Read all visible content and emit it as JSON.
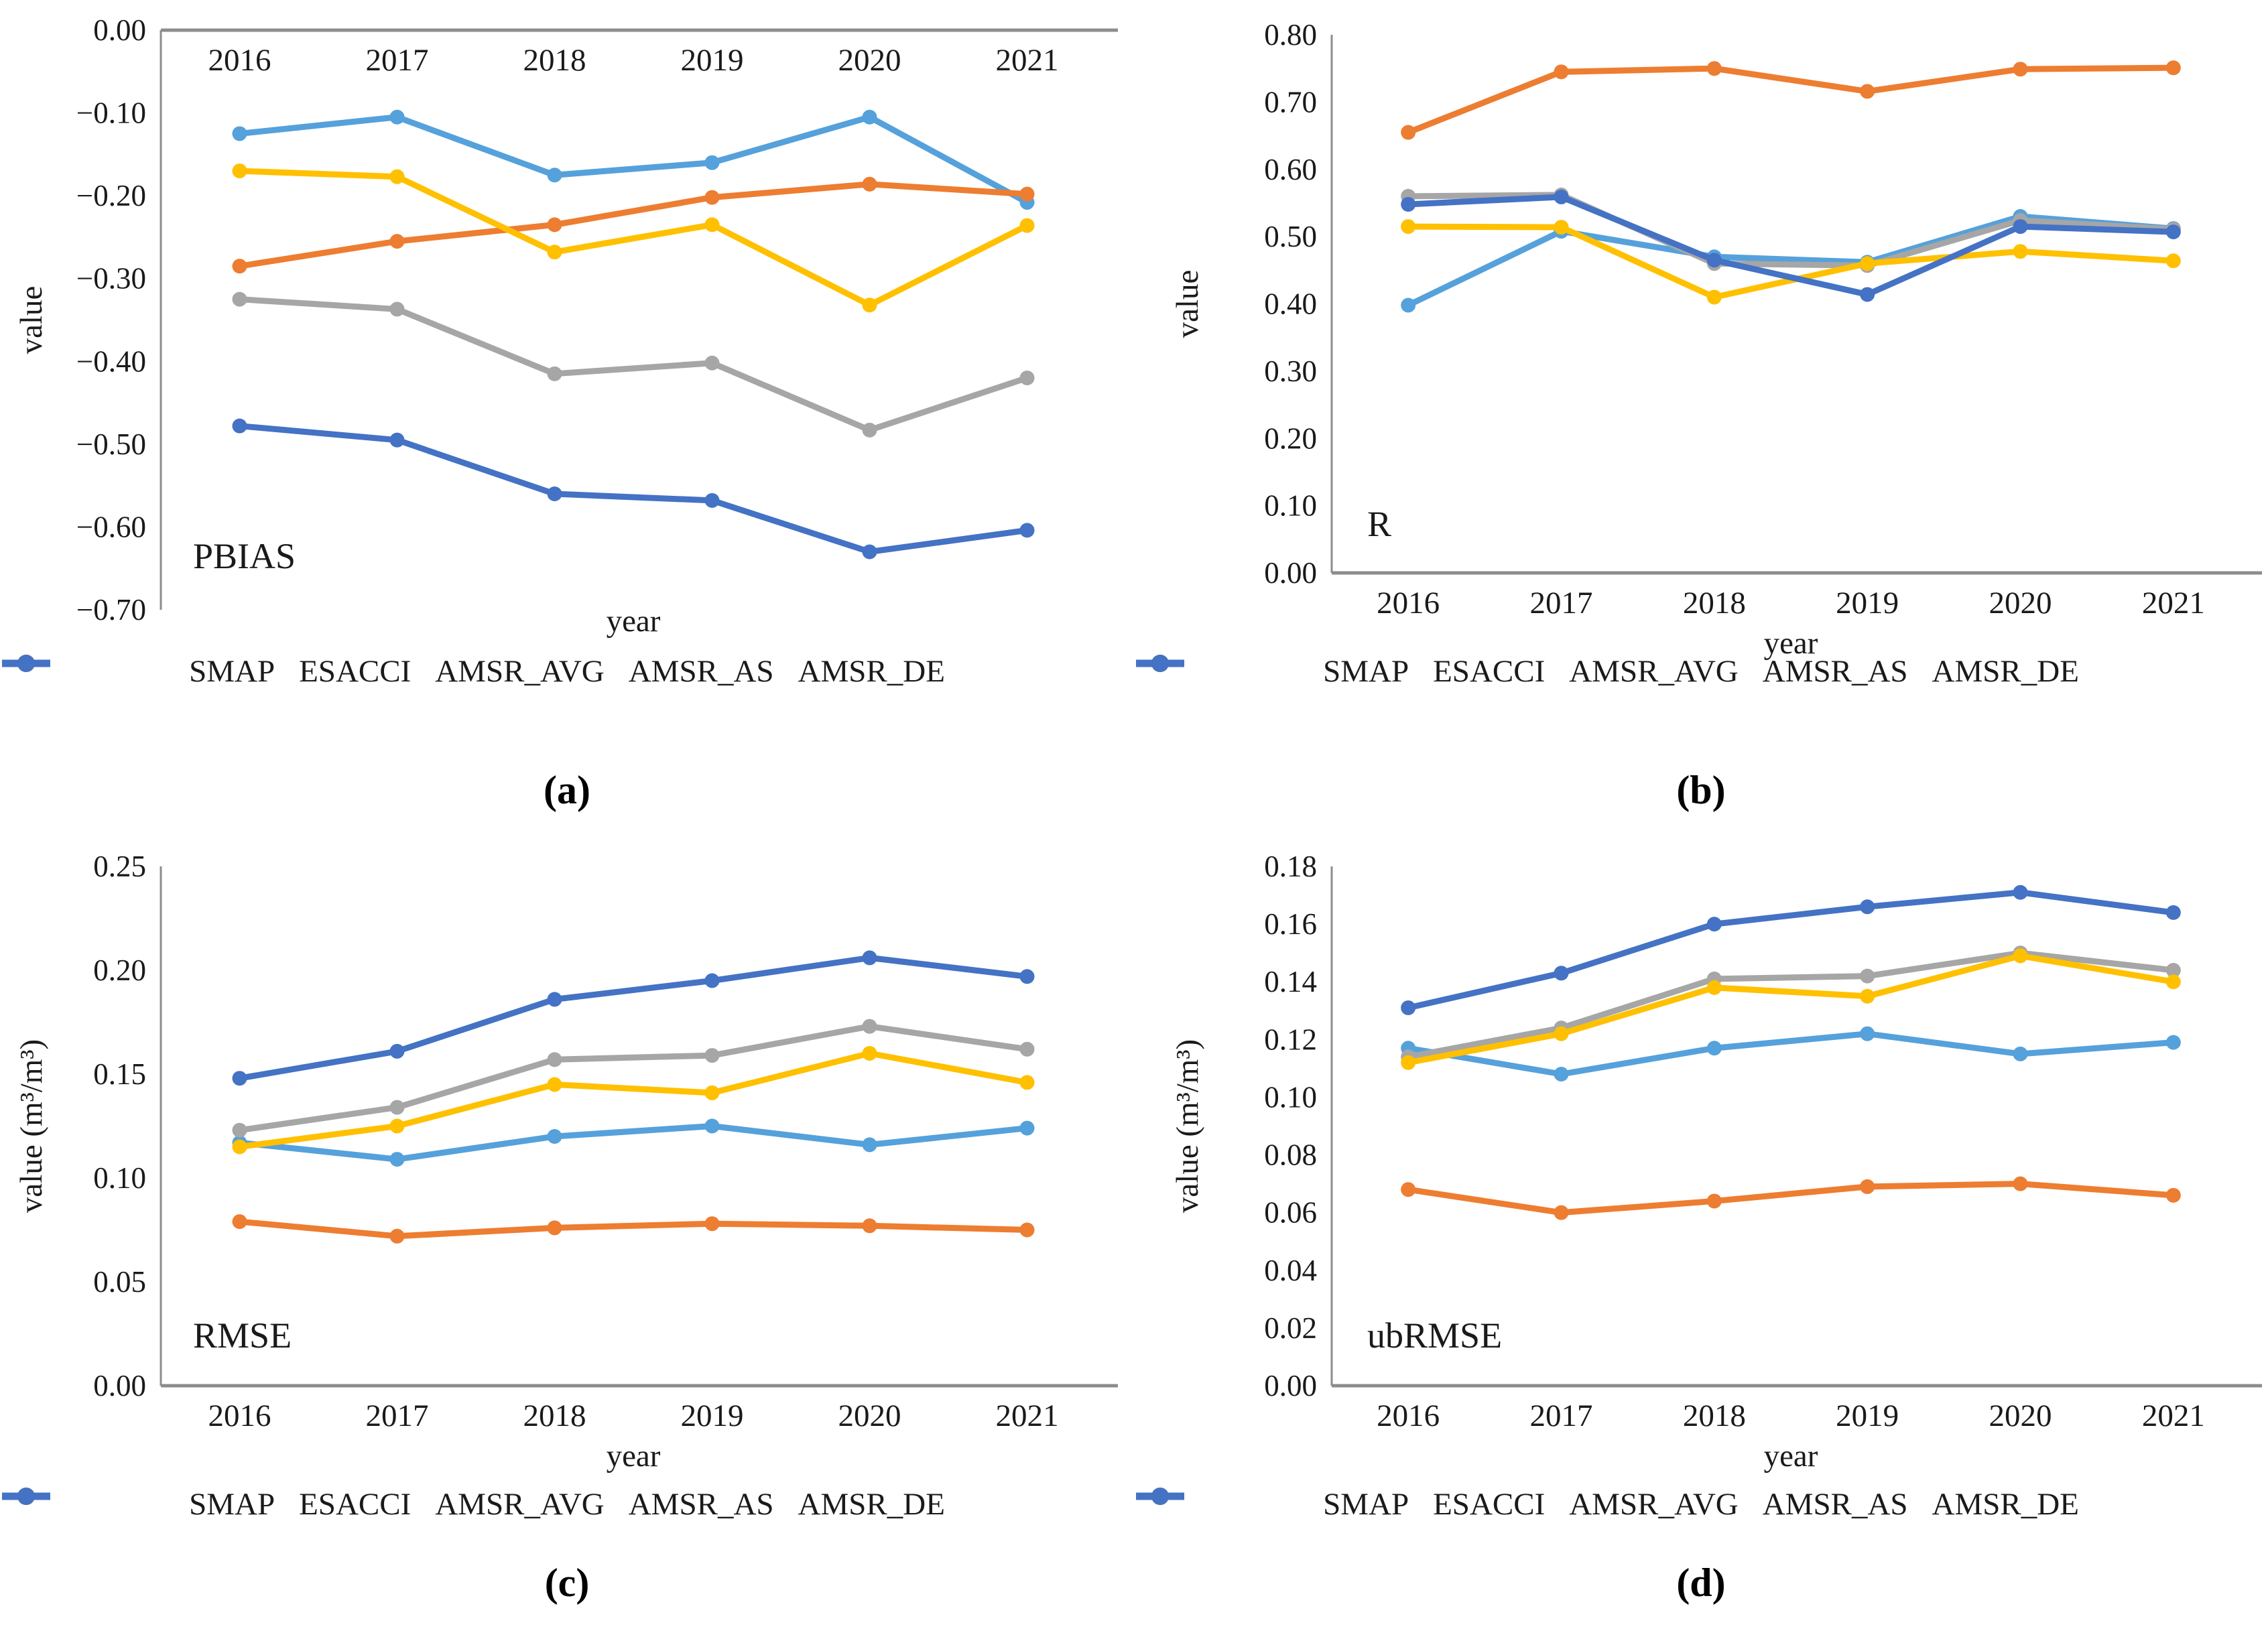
{
  "figure": {
    "xlabel": "year",
    "legend_labels": [
      "SMAP",
      "ESACCI",
      "AMSR_AVG",
      "AMSR_AS",
      "AMSR_DE"
    ],
    "series_colors": {
      "SMAP": "#55A1DB",
      "ESACCI": "#ED7D31",
      "AMSR_AVG": "#A6A6A6",
      "AMSR_AS": "#FFC000",
      "AMSR_DE": "#4472C4"
    },
    "axis_color": "#8c8c8c",
    "text_color": "#1a1a1a"
  },
  "chart_data": [
    {
      "id": "a",
      "panel_letter": "(a)",
      "type": "line",
      "metric_label": "PBIAS",
      "xlabel": "year",
      "ylabel": "value",
      "categories": [
        "2016",
        "2017",
        "2018",
        "2019",
        "2020",
        "2021"
      ],
      "ylim": [
        -0.7,
        0.0
      ],
      "ytick_values": [
        0.0,
        -0.1,
        -0.2,
        -0.3,
        -0.4,
        -0.5,
        -0.6,
        -0.7
      ],
      "ytick_labels": [
        "0.00",
        "−0.10",
        "−0.20",
        "−0.30",
        "−0.40",
        "−0.50",
        "−0.60",
        "−0.70"
      ],
      "x_tick_position": "top",
      "grid": "off",
      "legend_position": "bottom",
      "series": [
        {
          "name": "SMAP",
          "color": "#55A1DB",
          "values": [
            -0.125,
            -0.105,
            -0.175,
            -0.16,
            -0.105,
            -0.208
          ]
        },
        {
          "name": "ESACCI",
          "color": "#ED7D31",
          "values": [
            -0.285,
            -0.255,
            -0.235,
            -0.202,
            -0.186,
            -0.198
          ]
        },
        {
          "name": "AMSR_AVG",
          "color": "#A6A6A6",
          "values": [
            -0.325,
            -0.337,
            -0.415,
            -0.402,
            -0.483,
            -0.42
          ]
        },
        {
          "name": "AMSR_AS",
          "color": "#FFC000",
          "values": [
            -0.17,
            -0.177,
            -0.268,
            -0.235,
            -0.332,
            -0.236
          ]
        },
        {
          "name": "AMSR_DE",
          "color": "#4472C4",
          "values": [
            -0.478,
            -0.495,
            -0.56,
            -0.568,
            -0.63,
            -0.604
          ]
        }
      ]
    },
    {
      "id": "b",
      "panel_letter": "(b)",
      "type": "line",
      "metric_label": "R",
      "xlabel": "year",
      "ylabel": "value",
      "categories": [
        "2016",
        "2017",
        "2018",
        "2019",
        "2020",
        "2021"
      ],
      "ylim": [
        0.0,
        0.8
      ],
      "ytick_values": [
        0.8,
        0.7,
        0.6,
        0.5,
        0.4,
        0.3,
        0.2,
        0.1,
        0.0
      ],
      "ytick_labels": [
        "0.80",
        "0.70",
        "0.60",
        "0.50",
        "0.40",
        "0.30",
        "0.20",
        "0.10",
        "0.00"
      ],
      "x_tick_position": "bottom",
      "grid": "off",
      "legend_position": "bottom",
      "series": [
        {
          "name": "SMAP",
          "color": "#55A1DB",
          "values": [
            0.398,
            0.508,
            0.47,
            0.462,
            0.53,
            0.512
          ]
        },
        {
          "name": "ESACCI",
          "color": "#ED7D31",
          "values": [
            0.655,
            0.745,
            0.75,
            0.716,
            0.749,
            0.751
          ]
        },
        {
          "name": "AMSR_AVG",
          "color": "#A6A6A6",
          "values": [
            0.56,
            0.562,
            0.46,
            0.457,
            0.524,
            0.511
          ]
        },
        {
          "name": "AMSR_AS",
          "color": "#FFC000",
          "values": [
            0.515,
            0.514,
            0.41,
            0.46,
            0.478,
            0.464
          ]
        },
        {
          "name": "AMSR_DE",
          "color": "#4472C4",
          "values": [
            0.548,
            0.559,
            0.465,
            0.414,
            0.515,
            0.507
          ]
        }
      ]
    },
    {
      "id": "c",
      "panel_letter": "(c)",
      "type": "line",
      "metric_label": "RMSE",
      "xlabel": "year",
      "ylabel": "value (m³/m³)",
      "categories": [
        "2016",
        "2017",
        "2018",
        "2019",
        "2020",
        "2021"
      ],
      "ylim": [
        0.0,
        0.25
      ],
      "ytick_values": [
        0.25,
        0.2,
        0.15,
        0.1,
        0.05,
        0.0
      ],
      "ytick_labels": [
        "0.25",
        "0.20",
        "0.15",
        "0.10",
        "0.05",
        "0.00"
      ],
      "x_tick_position": "bottom",
      "grid": "off",
      "legend_position": "bottom",
      "series": [
        {
          "name": "SMAP",
          "color": "#55A1DB",
          "values": [
            0.117,
            0.109,
            0.12,
            0.125,
            0.116,
            0.124
          ]
        },
        {
          "name": "ESACCI",
          "color": "#ED7D31",
          "values": [
            0.079,
            0.072,
            0.076,
            0.078,
            0.077,
            0.075
          ]
        },
        {
          "name": "AMSR_AVG",
          "color": "#A6A6A6",
          "values": [
            0.123,
            0.134,
            0.157,
            0.159,
            0.173,
            0.162
          ]
        },
        {
          "name": "AMSR_AS",
          "color": "#FFC000",
          "values": [
            0.115,
            0.125,
            0.145,
            0.141,
            0.16,
            0.146
          ]
        },
        {
          "name": "AMSR_DE",
          "color": "#4472C4",
          "values": [
            0.148,
            0.161,
            0.186,
            0.195,
            0.206,
            0.197
          ]
        }
      ]
    },
    {
      "id": "d",
      "panel_letter": "(d)",
      "type": "line",
      "metric_label": "ubRMSE",
      "xlabel": "year",
      "ylabel": "value (m³/m³)",
      "categories": [
        "2016",
        "2017",
        "2018",
        "2019",
        "2020",
        "2021"
      ],
      "ylim": [
        0.0,
        0.18
      ],
      "ytick_values": [
        0.18,
        0.16,
        0.14,
        0.12,
        0.1,
        0.08,
        0.06,
        0.04,
        0.02,
        0.0
      ],
      "ytick_labels": [
        "0.18",
        "0.16",
        "0.14",
        "0.12",
        "0.10",
        "0.08",
        "0.06",
        "0.04",
        "0.02",
        "0.00"
      ],
      "x_tick_position": "bottom",
      "grid": "off",
      "legend_position": "bottom",
      "series": [
        {
          "name": "SMAP",
          "color": "#55A1DB",
          "values": [
            0.117,
            0.108,
            0.117,
            0.122,
            0.115,
            0.119
          ]
        },
        {
          "name": "ESACCI",
          "color": "#ED7D31",
          "values": [
            0.068,
            0.06,
            0.064,
            0.069,
            0.07,
            0.066
          ]
        },
        {
          "name": "AMSR_AVG",
          "color": "#A6A6A6",
          "values": [
            0.114,
            0.124,
            0.141,
            0.142,
            0.15,
            0.144
          ]
        },
        {
          "name": "AMSR_AS",
          "color": "#FFC000",
          "values": [
            0.112,
            0.122,
            0.138,
            0.135,
            0.149,
            0.14
          ]
        },
        {
          "name": "AMSR_DE",
          "color": "#4472C4",
          "values": [
            0.131,
            0.143,
            0.16,
            0.166,
            0.171,
            0.164
          ]
        }
      ]
    }
  ]
}
